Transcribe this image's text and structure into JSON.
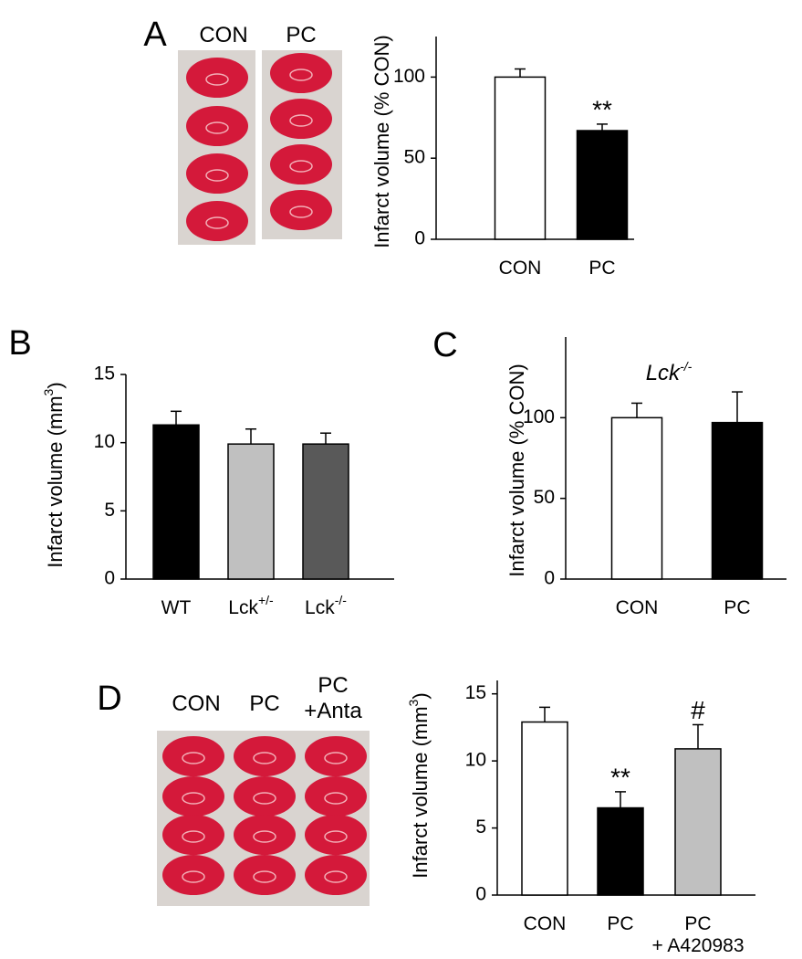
{
  "chart_data": [
    {
      "type": "bar",
      "panel": "A",
      "image_labels": [
        "CON",
        "PC"
      ],
      "ylabel": "Infarct volume (% CON)",
      "categories": [
        "CON",
        "PC"
      ],
      "values": [
        100,
        67
      ],
      "errors": [
        5,
        4
      ],
      "colors": [
        "#ffffff",
        "#000000"
      ],
      "annotations": [
        null,
        "**"
      ],
      "ylim": [
        0,
        125
      ],
      "yticks": [
        0,
        50,
        100
      ]
    },
    {
      "type": "bar",
      "panel": "B",
      "ylabel": [
        "Infarct volume (mm",
        "3",
        ")"
      ],
      "categories": [
        "WT",
        "Lck+/-",
        "Lck-/-"
      ],
      "values": [
        11.3,
        9.9,
        9.9
      ],
      "errors": [
        1.0,
        1.1,
        0.8
      ],
      "colors": [
        "#000000",
        "#c0c0c0",
        "#595959"
      ],
      "ylim": [
        0,
        15
      ],
      "yticks": [
        0,
        5,
        10,
        15
      ]
    },
    {
      "type": "bar",
      "panel": "C",
      "title": "Lck-/-",
      "ylabel": "Infarct volume (% CON)",
      "categories": [
        "CON",
        "PC"
      ],
      "values": [
        100,
        97
      ],
      "errors": [
        9,
        19
      ],
      "colors": [
        "#ffffff",
        "#000000"
      ],
      "ylim": [
        0,
        150
      ],
      "yticks": [
        0,
        50,
        100
      ]
    },
    {
      "type": "bar",
      "panel": "D",
      "image_labels": [
        "CON",
        "PC",
        "PC\n+Anta"
      ],
      "ylabel": [
        "Infarct volume (mm",
        "3",
        ")"
      ],
      "categories": [
        "CON",
        "PC",
        "PC\n+ A420983"
      ],
      "values": [
        12.9,
        6.5,
        10.9
      ],
      "errors": [
        1.1,
        1.2,
        1.8
      ],
      "colors": [
        "#ffffff",
        "#000000",
        "#c0c0c0"
      ],
      "annotations": [
        null,
        "**",
        "#"
      ],
      "ylim": [
        0,
        16
      ],
      "yticks": [
        0,
        5,
        10,
        15
      ]
    }
  ]
}
